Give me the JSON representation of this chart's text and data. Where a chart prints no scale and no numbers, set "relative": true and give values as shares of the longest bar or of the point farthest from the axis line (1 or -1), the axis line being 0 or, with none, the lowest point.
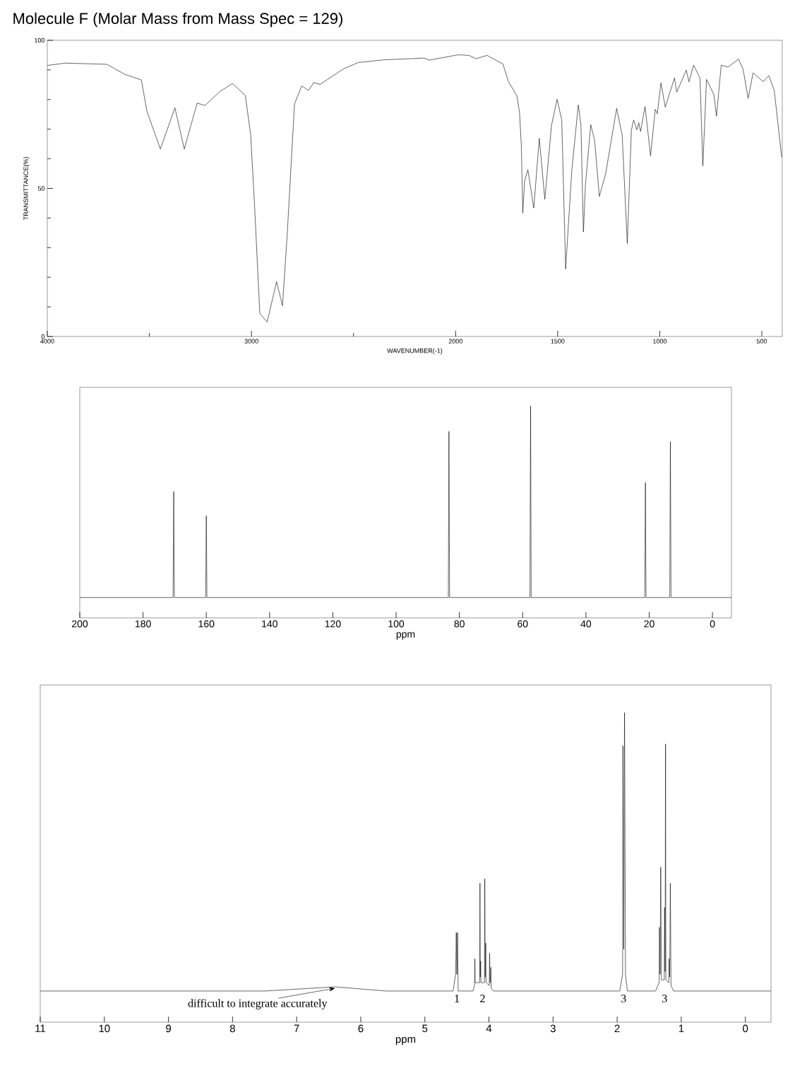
{
  "chart_data": [
    {
      "type": "line",
      "title": "Molecule F (Molar Mass from Mass Spec = 129)",
      "xlabel": "WAVENUMBER(-1)",
      "ylabel": "TRANSMITTANCE(%)",
      "color": "#000000",
      "xlim": [
        4000,
        400
      ],
      "ylim": [
        0,
        100
      ],
      "xticks": [
        4000,
        {
          "value": 3500,
          "label": null
        },
        3000,
        {
          "value": 2500,
          "label": null
        },
        2000,
        1500,
        1000,
        500
      ],
      "yticks": [
        0,
        {
          "value": 10,
          "label": null
        },
        {
          "value": 20,
          "label": null
        },
        {
          "value": 30,
          "label": null
        },
        {
          "value": 40,
          "label": null
        },
        50,
        {
          "value": 60,
          "label": null
        },
        {
          "value": 70,
          "label": null
        },
        {
          "value": 80,
          "label": null
        },
        {
          "value": 90,
          "label": null
        },
        100
      ],
      "x": [
        4000,
        3914,
        3709,
        3620,
        3539,
        3512,
        3446,
        3375,
        3329,
        3266,
        3227,
        3155,
        3093,
        3030,
        3004,
        2986,
        2959,
        2923,
        2877,
        2848,
        2825,
        2789,
        2754,
        2721,
        2695,
        2664,
        2548,
        2477,
        2352,
        2155,
        2129,
        1988,
        1935,
        1899,
        1846,
        1768,
        1741,
        1700,
        1687,
        1678,
        1671,
        1662,
        1646,
        1617,
        1590,
        1563,
        1530,
        1503,
        1480,
        1461,
        1431,
        1399,
        1386,
        1374,
        1364,
        1338,
        1319,
        1296,
        1265,
        1211,
        1184,
        1159,
        1139,
        1128,
        1112,
        1103,
        1094,
        1072,
        1045,
        1022,
        1012,
        994,
        973,
        928,
        917,
        870,
        857,
        834,
        803,
        789,
        771,
        735,
        722,
        699,
        665,
        614,
        592,
        567,
        543,
        493,
        466,
        439,
        403
      ],
      "values": [
        91.5,
        92.3,
        91.9,
        88.5,
        86.6,
        76,
        63.3,
        77.2,
        63.3,
        78.8,
        78,
        82.7,
        85.4,
        81.4,
        68.2,
        46,
        7.8,
        4.9,
        18.5,
        10.4,
        34.2,
        78.5,
        84.6,
        83.1,
        85.7,
        85.1,
        90.4,
        92.5,
        93.4,
        94,
        93.3,
        95.1,
        94.9,
        93.8,
        94.9,
        92,
        86,
        81.3,
        75.7,
        64.5,
        41.7,
        52.5,
        56.3,
        43.4,
        66.9,
        46.3,
        71.4,
        80.1,
        73.1,
        22.8,
        55.9,
        78.2,
        71.4,
        35.3,
        51.2,
        71.5,
        66.2,
        47.3,
        55,
        77,
        67.9,
        31.4,
        69.6,
        73.1,
        69.8,
        72.2,
        69.2,
        77.6,
        61,
        76.7,
        75.2,
        85.6,
        77.4,
        87.3,
        82.5,
        89.9,
        86,
        91.6,
        87.3,
        57.6,
        86.8,
        81.7,
        74.4,
        91.6,
        91,
        93.6,
        90.3,
        80.4,
        89,
        86,
        88.1,
        83,
        60.6
      ]
    },
    {
      "type": "line",
      "relative": true,
      "tick_labels": "x",
      "xlabel": "ppm",
      "color": "#000000",
      "xlim": [
        200,
        -6
      ],
      "xticks": [
        200,
        180,
        160,
        140,
        120,
        100,
        80,
        60,
        40,
        20,
        0
      ],
      "x": [
        200,
        170.5,
        170.3,
        170.1,
        160.2,
        160,
        159.8,
        83.5,
        83.3,
        83.1,
        57.7,
        57.5,
        57.3,
        21.4,
        21.2,
        21.0,
        13.5,
        13.3,
        13.1,
        -6
      ],
      "values": [
        0,
        0,
        0.553,
        0,
        0,
        0.427,
        0,
        0,
        0.867,
        0,
        0,
        1,
        0,
        0,
        0.6,
        0,
        0,
        0.813,
        0,
        0
      ]
    },
    {
      "type": "line",
      "relative": true,
      "tick_labels": "x",
      "xlabel": "ppm",
      "color": "#000000",
      "xlim": [
        11,
        -0.4
      ],
      "xticks": [
        11,
        10,
        9,
        8,
        7,
        6,
        5,
        4,
        3,
        2,
        1,
        0
      ],
      "x": [
        11,
        7.5,
        6.4,
        5.6,
        4.56,
        4.52,
        4.51,
        4.5,
        4.49,
        4.48,
        4.25,
        4.225,
        4.22,
        4.215,
        4.145,
        4.14,
        4.135,
        4.13,
        4.125,
        4.07,
        4.065,
        4.058,
        4.05,
        4.045,
        3.995,
        3.99,
        3.982,
        3.97,
        3.965,
        3.93,
        1.96,
        1.915,
        1.91,
        1.897,
        1.885,
        1.87,
        1.84,
        1.4,
        1.345,
        1.34,
        1.33,
        1.32,
        1.31,
        1.265,
        1.26,
        1.252,
        1.245,
        1.24,
        1.195,
        1.19,
        1.18,
        1.17,
        1.16,
        1.12,
        -0.4
      ],
      "values": [
        0,
        0,
        0.015,
        0,
        0,
        0.06,
        0.21,
        0.06,
        0.21,
        0,
        0,
        0.02,
        0.116,
        0.03,
        0.03,
        0.387,
        0.05,
        0.108,
        0.03,
        0.03,
        0.403,
        0.05,
        0.172,
        0.03,
        0.02,
        0.136,
        0.03,
        0.085,
        0.01,
        0,
        0,
        0.06,
        0.881,
        0.15,
        1.0,
        0.06,
        0,
        0,
        0.03,
        0.229,
        0.06,
        0.445,
        0.04,
        0.04,
        0.3,
        0.07,
        0.887,
        0.04,
        0.03,
        0.116,
        0.05,
        0.387,
        0.02,
        0,
        0
      ],
      "annotations": [
        {
          "text": "difficult to integrate accurately",
          "x": 6.4,
          "y": 0.015
        },
        "1",
        "2",
        "3",
        "3"
      ]
    }
  ]
}
